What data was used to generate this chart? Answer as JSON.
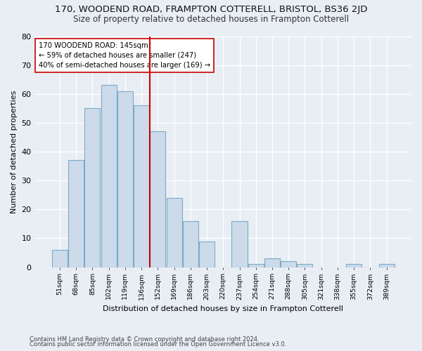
{
  "title1": "170, WOODEND ROAD, FRAMPTON COTTERELL, BRISTOL, BS36 2JD",
  "title2": "Size of property relative to detached houses in Frampton Cotterell",
  "xlabel": "Distribution of detached houses by size in Frampton Cotterell",
  "ylabel": "Number of detached properties",
  "categories": [
    "51sqm",
    "68sqm",
    "85sqm",
    "102sqm",
    "119sqm",
    "136sqm",
    "152sqm",
    "169sqm",
    "186sqm",
    "203sqm",
    "220sqm",
    "237sqm",
    "254sqm",
    "271sqm",
    "288sqm",
    "305sqm",
    "321sqm",
    "338sqm",
    "355sqm",
    "372sqm",
    "389sqm"
  ],
  "values": [
    6,
    37,
    55,
    63,
    61,
    56,
    47,
    24,
    16,
    9,
    0,
    16,
    1,
    3,
    2,
    1,
    0,
    0,
    1,
    0,
    1
  ],
  "bar_color": "#ccdaea",
  "bar_edge_color": "#7aaac8",
  "annotation_line1": "170 WOODEND ROAD: 145sqm",
  "annotation_line2": "← 59% of detached houses are smaller (247)",
  "annotation_line3": "40% of semi-detached houses are larger (169) →",
  "annotation_box_color": "#ffffff",
  "annotation_box_edge": "#cc0000",
  "vline_color": "#cc0000",
  "ylim": [
    0,
    80
  ],
  "yticks": [
    0,
    10,
    20,
    30,
    40,
    50,
    60,
    70,
    80
  ],
  "footnote1": "Contains HM Land Registry data © Crown copyright and database right 2024.",
  "footnote2": "Contains public sector information licensed under the Open Government Licence v3.0.",
  "bg_color": "#e8eef4",
  "plot_bg_color": "#e8eef4",
  "title1_fontsize": 9.5,
  "title2_fontsize": 8.5,
  "vline_pos": 5.53
}
